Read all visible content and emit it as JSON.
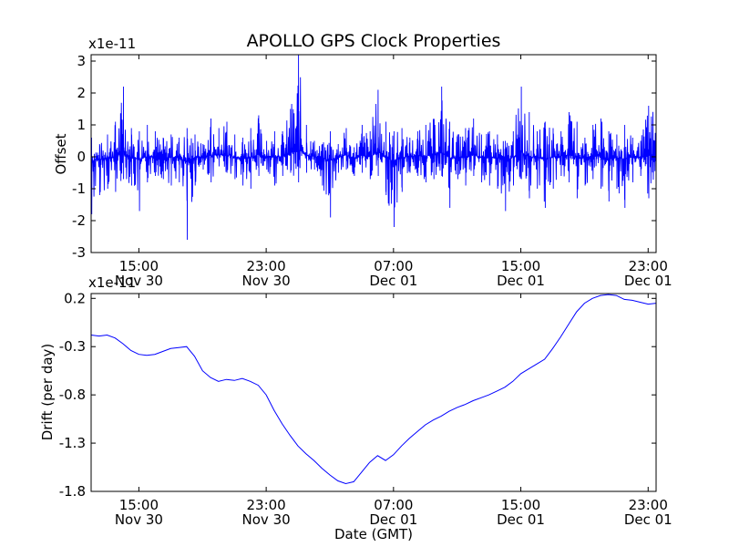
{
  "title": "APOLLO GPS Clock Properties",
  "xlabel": "Date (GMT)",
  "x_ticks": [
    {
      "time": "15:00",
      "date": "Nov 30"
    },
    {
      "time": "23:00",
      "date": "Nov 30"
    },
    {
      "time": "07:00",
      "date": "Dec 01"
    },
    {
      "time": "15:00",
      "date": "Dec 01"
    },
    {
      "time": "23:00",
      "date": "Dec 01"
    }
  ],
  "colors": {
    "line": "#0000ff",
    "axes": "#000000",
    "background": "#ffffff"
  },
  "chart_data": [
    {
      "type": "line",
      "title": "APOLLO GPS Clock Properties",
      "ylabel": "Offset",
      "y_scale_label": "x1e-11",
      "y_ticks": [
        "-3",
        "-2",
        "-1",
        "0",
        "1",
        "2",
        "3"
      ],
      "x_range": [
        "Nov 30 12:00",
        "Dec 01 23:30"
      ],
      "ylim": [
        -3,
        3.2
      ],
      "grid": false,
      "series": [
        {
          "x_hours": [
            0,
            0.5,
            1,
            1.5,
            2,
            2.5,
            3,
            3.5,
            4,
            4.5,
            5,
            5.5,
            6,
            6.5,
            7,
            7.5,
            8,
            8.5,
            9,
            9.5,
            10,
            10.5,
            11,
            11.5,
            12,
            12.5,
            13,
            13.5,
            14,
            14.5,
            15,
            15.5,
            16,
            16.5,
            17,
            17.5,
            18,
            18.5,
            19,
            19.5,
            20,
            20.5,
            21,
            21.5,
            22,
            22.5,
            23,
            23.5,
            24,
            24.5,
            25,
            25.5,
            26,
            26.5,
            27,
            27.5,
            28,
            28.5,
            29,
            29.5,
            30,
            30.5,
            31,
            31.5,
            32,
            32.5,
            33,
            33.5,
            34,
            34.5,
            35,
            35.5
          ],
          "y_low": [
            -1.8,
            -1.2,
            -1.0,
            -1.1,
            -0.7,
            -0.9,
            -1.7,
            -0.8,
            -0.6,
            -0.7,
            -0.9,
            -0.8,
            -2.6,
            -0.9,
            -0.4,
            -0.8,
            -0.3,
            -0.5,
            -0.7,
            -0.9,
            -1.0,
            -0.6,
            -0.4,
            -0.9,
            -0.6,
            -0.5,
            -0.8,
            -0.5,
            -0.4,
            -0.9,
            -1.9,
            -0.5,
            -0.4,
            -0.6,
            -0.5,
            -0.7,
            -0.6,
            -1.2,
            -2.2,
            -1.1,
            -0.5,
            -0.6,
            -0.8,
            -0.7,
            -0.6,
            -1.6,
            -0.7,
            -0.9,
            -0.6,
            -0.8,
            -0.9,
            -1.0,
            -1.7,
            -0.9,
            -0.7,
            -1.3,
            -1.0,
            -1.6,
            -1.0,
            -0.6,
            -0.8,
            -1.3,
            -0.9,
            -0.7,
            -1.0,
            -1.4,
            -1.0,
            -1.6,
            -0.8,
            -0.6,
            -1.3,
            -0.8
          ],
          "y_high": [
            0.6,
            0.4,
            0.7,
            1.1,
            2.2,
            0.9,
            0.8,
            1.0,
            0.8,
            0.6,
            0.7,
            0.6,
            0.9,
            0.7,
            0.4,
            1.2,
            0.9,
            1.1,
            0.7,
            0.6,
            0.9,
            1.3,
            0.5,
            0.8,
            0.8,
            1.5,
            3.2,
            1.0,
            0.5,
            0.4,
            0.8,
            0.4,
            0.9,
            0.3,
            1.0,
            0.8,
            2.1,
            1.1,
            0.8,
            0.9,
            0.6,
            0.8,
            1.0,
            1.2,
            2.2,
            1.1,
            0.7,
            0.9,
            1.2,
            0.7,
            0.8,
            0.7,
            0.5,
            0.8,
            2.2,
            1.4,
            0.8,
            1.1,
            0.9,
            0.8,
            1.4,
            1.1,
            0.6,
            1.0,
            1.2,
            0.8,
            0.7,
            1.0,
            0.6,
            0.5,
            1.6,
            1.8
          ]
        }
      ]
    },
    {
      "type": "line",
      "ylabel": "Drift (per day)",
      "y_scale_label": "x1e-11",
      "y_ticks": [
        "-1.8",
        "-1.3",
        "-0.8",
        "-0.3",
        "0.2"
      ],
      "x_range": [
        "Nov 30 12:00",
        "Dec 01 23:30"
      ],
      "ylim": [
        -1.8,
        0.25
      ],
      "grid": false,
      "series": [
        {
          "x_hours": [
            0,
            0.5,
            1,
            1.5,
            2,
            2.5,
            3,
            3.5,
            4,
            4.5,
            5,
            5.5,
            6,
            6.5,
            7,
            7.5,
            8,
            8.5,
            9,
            9.5,
            10,
            10.5,
            11,
            11.5,
            12,
            12.5,
            13,
            13.5,
            14,
            14.5,
            15,
            15.5,
            16,
            16.5,
            17,
            17.5,
            18,
            18.5,
            19,
            19.5,
            20,
            20.5,
            21,
            21.5,
            22,
            22.5,
            23,
            23.5,
            24,
            24.5,
            25,
            25.5,
            26,
            26.5,
            27,
            27.5,
            28,
            28.5,
            29,
            29.5,
            30,
            30.5,
            31,
            31.5,
            32,
            32.5,
            33,
            33.5,
            34,
            34.5,
            35,
            35.5
          ],
          "values": [
            -0.18,
            -0.19,
            -0.18,
            -0.21,
            -0.27,
            -0.34,
            -0.38,
            -0.39,
            -0.38,
            -0.35,
            -0.32,
            -0.31,
            -0.3,
            -0.4,
            -0.55,
            -0.62,
            -0.66,
            -0.64,
            -0.65,
            -0.63,
            -0.66,
            -0.7,
            -0.8,
            -0.96,
            -1.1,
            -1.22,
            -1.33,
            -1.41,
            -1.48,
            -1.56,
            -1.63,
            -1.69,
            -1.72,
            -1.7,
            -1.6,
            -1.5,
            -1.43,
            -1.48,
            -1.42,
            -1.33,
            -1.25,
            -1.18,
            -1.11,
            -1.06,
            -1.02,
            -0.97,
            -0.93,
            -0.9,
            -0.86,
            -0.83,
            -0.8,
            -0.76,
            -0.72,
            -0.66,
            -0.58,
            -0.53,
            -0.48,
            -0.43,
            -0.32,
            -0.2,
            -0.07,
            0.06,
            0.15,
            0.2,
            0.23,
            0.24,
            0.23,
            0.19,
            0.18,
            0.16,
            0.14,
            0.15
          ]
        }
      ]
    }
  ]
}
